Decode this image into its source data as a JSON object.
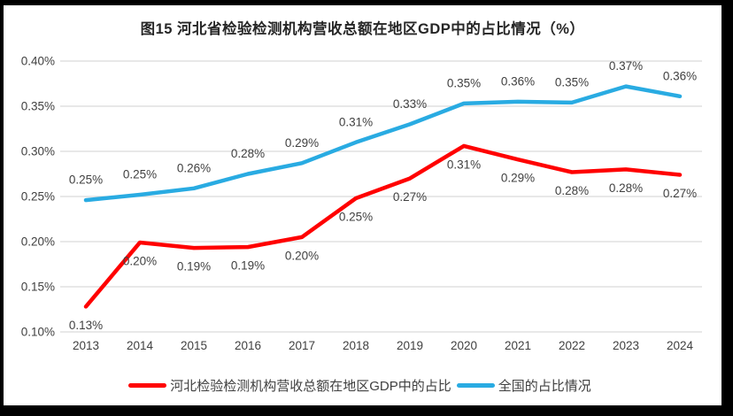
{
  "chart_data": {
    "type": "line",
    "title": "图15 河北省检验检测机构营收总额在地区GDP中的占比情况（%）",
    "categories": [
      "2013",
      "2014",
      "2015",
      "2016",
      "2017",
      "2018",
      "2019",
      "2020",
      "2021",
      "2022",
      "2023",
      "2024"
    ],
    "y_axis": {
      "ticks": [
        "0.40%",
        "0.35%",
        "0.30%",
        "0.25%",
        "0.20%",
        "0.15%",
        "0.10%"
      ],
      "min": 0.1,
      "max": 0.4,
      "grid": true
    },
    "series": [
      {
        "name": "河北检验检测机构营收总额在地区GDP中的占比",
        "color": "#FF0000",
        "values": [
          0.128,
          0.199,
          0.193,
          0.194,
          0.205,
          0.248,
          0.27,
          0.306,
          0.291,
          0.277,
          0.28,
          0.274
        ],
        "labels": [
          "0.13%",
          "0.20%",
          "0.19%",
          "0.19%",
          "0.20%",
          "0.25%",
          "0.27%",
          "0.31%",
          "0.29%",
          "0.28%",
          "0.28%",
          "0.27%"
        ],
        "label_position": "below"
      },
      {
        "name": "全国的占比情况",
        "color": "#29ABE2",
        "values": [
          0.246,
          0.252,
          0.259,
          0.275,
          0.287,
          0.31,
          0.33,
          0.353,
          0.355,
          0.354,
          0.372,
          0.361
        ],
        "labels": [
          "0.25%",
          "0.25%",
          "0.26%",
          "0.28%",
          "0.29%",
          "0.31%",
          "0.33%",
          "0.35%",
          "0.36%",
          "0.35%",
          "0.37%",
          "0.36%"
        ],
        "label_position": "above"
      }
    ],
    "legend_position": "bottom"
  },
  "colors": {
    "frame": "#000000",
    "background": "#FFFFFF",
    "grid": "#D9D9D9",
    "tick_text": "#404040",
    "data_label_text": "#404040",
    "title_text": "#262626"
  }
}
